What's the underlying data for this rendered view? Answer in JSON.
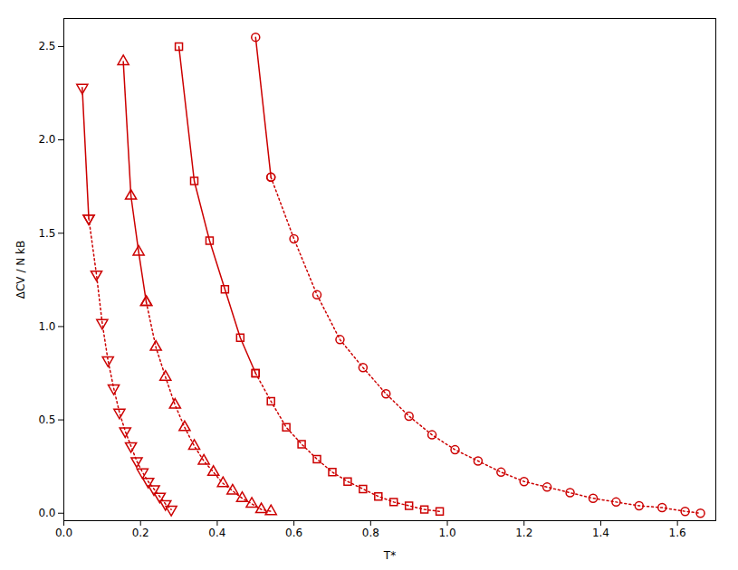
{
  "chart_data": {
    "type": "line",
    "xlabel": "T*",
    "ylabel": "ΔCV / N kB",
    "color": "#cc0000",
    "grid": false,
    "xlim": [
      0.0,
      1.7
    ],
    "ylim": [
      -0.04,
      2.65
    ],
    "xticks": [
      {
        "value": 0,
        "label": "0.0"
      },
      0.2,
      0.4,
      0.6,
      0.8,
      {
        "value": 1,
        "label": "1.0"
      },
      1.2,
      1.4,
      1.6
    ],
    "yticks": [
      {
        "value": 0,
        "label": "0.0"
      },
      0.5,
      {
        "value": 1,
        "label": "1.0"
      },
      1.5,
      {
        "value": 2,
        "label": "2.0"
      },
      2.5
    ],
    "series": [
      {
        "marker": "triangle-down",
        "line_style": "solid",
        "x": [
          0.048,
          0.065
        ],
        "values": [
          2.28,
          1.58
        ]
      },
      {
        "marker": "triangle-down",
        "line_style": "dotted",
        "x": [
          0.065,
          0.085,
          0.1,
          0.115,
          0.13,
          0.145,
          0.16,
          0.175,
          0.19,
          0.205,
          0.22,
          0.235,
          0.25,
          0.265,
          0.28
        ],
        "values": [
          1.58,
          1.28,
          1.02,
          0.82,
          0.67,
          0.54,
          0.44,
          0.36,
          0.28,
          0.22,
          0.17,
          0.13,
          0.09,
          0.05,
          0.02
        ]
      },
      {
        "marker": "triangle-up",
        "line_style": "solid",
        "x": [
          0.155,
          0.175,
          0.195,
          0.215
        ],
        "values": [
          2.42,
          1.7,
          1.4,
          1.13
        ]
      },
      {
        "marker": "triangle-up",
        "line_style": "dotted",
        "x": [
          0.215,
          0.24,
          0.265,
          0.29,
          0.315,
          0.34,
          0.365,
          0.39,
          0.415,
          0.44,
          0.465,
          0.49,
          0.515,
          0.54
        ],
        "values": [
          1.13,
          0.89,
          0.73,
          0.58,
          0.46,
          0.36,
          0.28,
          0.22,
          0.16,
          0.12,
          0.08,
          0.05,
          0.02,
          0.01
        ]
      },
      {
        "marker": "square",
        "line_style": "solid",
        "x": [
          0.3,
          0.34,
          0.38,
          0.42,
          0.46,
          0.5
        ],
        "values": [
          2.5,
          1.78,
          1.46,
          1.2,
          0.94,
          0.75
        ]
      },
      {
        "marker": "square",
        "line_style": "dotted",
        "x": [
          0.5,
          0.54,
          0.58,
          0.62,
          0.66,
          0.7,
          0.74,
          0.78,
          0.82,
          0.86,
          0.9,
          0.94,
          0.98
        ],
        "values": [
          0.75,
          0.6,
          0.46,
          0.37,
          0.29,
          0.22,
          0.17,
          0.13,
          0.09,
          0.06,
          0.04,
          0.02,
          0.01
        ]
      },
      {
        "marker": "circle",
        "line_style": "solid",
        "x": [
          0.5,
          0.54
        ],
        "values": [
          2.55,
          1.8
        ]
      },
      {
        "marker": "circle",
        "line_style": "dotted",
        "x": [
          0.54,
          0.6,
          0.66,
          0.72,
          0.78,
          0.84,
          0.9,
          0.96,
          1.02,
          1.08,
          1.14,
          1.2,
          1.26,
          1.32,
          1.38,
          1.44,
          1.5,
          1.56,
          1.62,
          1.66
        ],
        "values": [
          1.8,
          1.47,
          1.17,
          0.93,
          0.78,
          0.64,
          0.52,
          0.42,
          0.34,
          0.28,
          0.22,
          0.17,
          0.14,
          0.11,
          0.08,
          0.06,
          0.04,
          0.03,
          0.01,
          0.0
        ]
      }
    ]
  }
}
